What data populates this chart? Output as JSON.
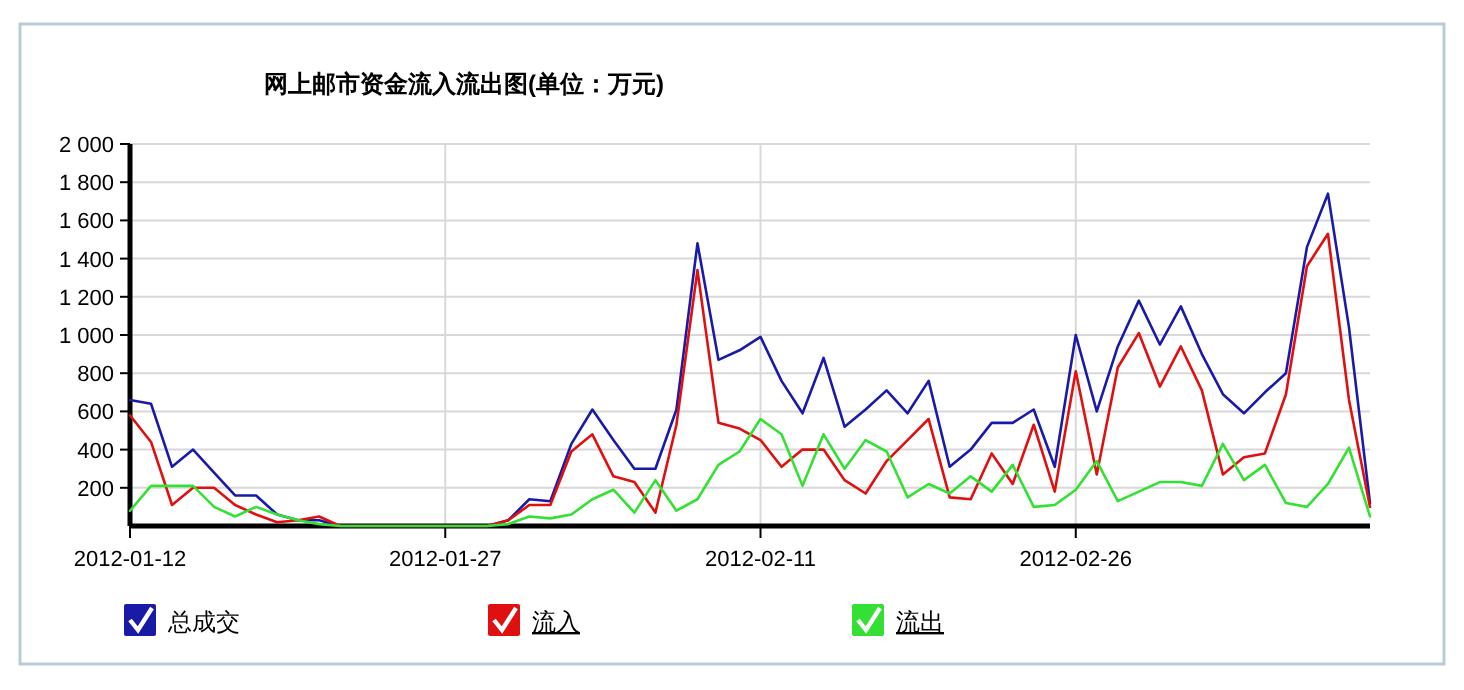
{
  "chart_data": {
    "type": "line",
    "title": "网上邮市资金流入流出图(单位：万元)",
    "x": [
      "2012-01-12",
      "2012-01-13",
      "2012-01-14",
      "2012-01-15",
      "2012-01-16",
      "2012-01-17",
      "2012-01-18",
      "2012-01-19",
      "2012-01-20",
      "2012-01-21",
      "2012-01-22",
      "2012-01-29",
      "2012-01-30",
      "2012-01-31",
      "2012-02-01",
      "2012-02-02",
      "2012-02-03",
      "2012-02-04",
      "2012-02-05",
      "2012-02-06",
      "2012-02-07",
      "2012-02-08",
      "2012-02-09",
      "2012-02-10",
      "2012-02-11",
      "2012-02-12",
      "2012-02-13",
      "2012-02-14",
      "2012-02-15",
      "2012-02-16",
      "2012-02-17",
      "2012-02-18",
      "2012-02-19",
      "2012-02-20",
      "2012-02-21",
      "2012-02-22",
      "2012-02-23",
      "2012-02-24",
      "2012-02-25",
      "2012-02-26",
      "2012-02-27",
      "2012-02-28",
      "2012-02-29",
      "2012-03-01",
      "2012-03-02",
      "2012-03-03",
      "2012-03-04",
      "2012-03-05",
      "2012-03-06",
      "2012-03-07",
      "2012-03-08",
      "2012-03-09",
      "2012-03-10",
      "2012-03-11"
    ],
    "series": [
      {
        "name": "总成交",
        "color": "#1a1aa8",
        "values": [
          660,
          640,
          310,
          400,
          280,
          160,
          160,
          60,
          30,
          30,
          0,
          0,
          30,
          140,
          130,
          430,
          610,
          450,
          300,
          300,
          610,
          1480,
          870,
          920,
          990,
          760,
          590,
          880,
          520,
          610,
          710,
          590,
          760,
          310,
          400,
          540,
          540,
          610,
          310,
          1000,
          600,
          940,
          1180,
          950,
          1150,
          900,
          690,
          590,
          700,
          800,
          1460,
          1740,
          1040,
          120
        ]
      },
      {
        "name": "流入",
        "color": "#e01010",
        "values": [
          580,
          440,
          110,
          200,
          200,
          110,
          60,
          20,
          30,
          50,
          0,
          0,
          30,
          110,
          110,
          390,
          480,
          260,
          230,
          70,
          530,
          1340,
          540,
          510,
          450,
          310,
          400,
          400,
          240,
          170,
          340,
          450,
          560,
          150,
          140,
          380,
          220,
          530,
          180,
          810,
          270,
          830,
          1010,
          730,
          940,
          710,
          270,
          360,
          380,
          690,
          1360,
          1530,
          660,
          100
        ]
      },
      {
        "name": "流出",
        "color": "#33e033",
        "values": [
          80,
          210,
          210,
          210,
          100,
          50,
          100,
          60,
          30,
          10,
          0,
          0,
          10,
          50,
          40,
          60,
          140,
          190,
          70,
          240,
          80,
          140,
          320,
          390,
          560,
          480,
          210,
          480,
          300,
          450,
          390,
          150,
          220,
          170,
          260,
          180,
          320,
          100,
          110,
          190,
          340,
          130,
          180,
          230,
          230,
          210,
          430,
          240,
          320,
          120,
          100,
          220,
          410,
          50
        ]
      }
    ],
    "xlim": [
      "2012-01-12",
      "2012-03-11"
    ],
    "xticks": [
      "2012-01-12",
      "2012-01-27",
      "2012-02-11",
      "2012-02-26"
    ],
    "ylim": [
      0,
      2000
    ],
    "yticks": [
      {
        "value": 200,
        "label": "200"
      },
      {
        "value": 400,
        "label": "400"
      },
      {
        "value": 600,
        "label": "600"
      },
      {
        "value": 800,
        "label": "800"
      },
      {
        "value": 1000,
        "label": "1 000"
      },
      {
        "value": 1200,
        "label": "1 200"
      },
      {
        "value": 1400,
        "label": "1 400"
      },
      {
        "value": 1600,
        "label": "1 600"
      },
      {
        "value": 1800,
        "label": "1 800"
      },
      {
        "value": 2000,
        "label": "2 000"
      }
    ],
    "grid": true,
    "legend": "bottom"
  }
}
